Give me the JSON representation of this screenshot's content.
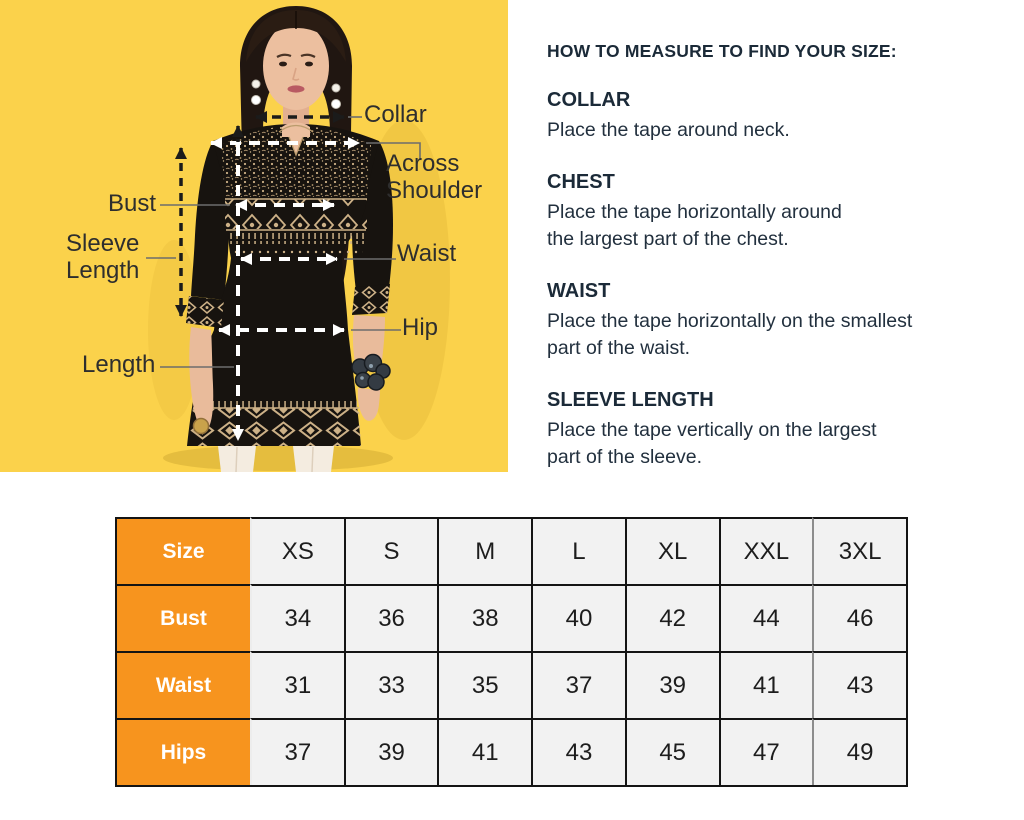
{
  "measure_diagram": {
    "background_color": "#FBD24B",
    "labels": {
      "collar": "Collar",
      "across_shoulder": "Across Shoulder",
      "bust": "Bust",
      "sleeve_length": "Sleeve Length",
      "waist": "Waist",
      "hip": "Hip",
      "length": "Length"
    }
  },
  "instructions": {
    "title": "HOW TO MEASURE TO FIND YOUR SIZE:",
    "sections": [
      {
        "heading": "COLLAR",
        "body": "Place the tape around neck."
      },
      {
        "heading": "CHEST",
        "body": "Place the tape horizontally around\nthe largest part of the chest."
      },
      {
        "heading": "WAIST",
        "body": "Place the tape horizontally on the smallest\npart of the waist."
      },
      {
        "heading": "SLEEVE LENGTH",
        "body": "Place the tape vertically on the largest\npart of the sleeve."
      }
    ]
  },
  "size_table": {
    "header_color": "#F7941E",
    "cell_color": "#F2F2F2",
    "columns": [
      "Size",
      "XS",
      "S",
      "M",
      "L",
      "XL",
      "XXL",
      "3XL"
    ],
    "rows": [
      {
        "label": "Bust",
        "values": [
          "34",
          "36",
          "38",
          "40",
          "42",
          "44",
          "46"
        ]
      },
      {
        "label": "Waist",
        "values": [
          "31",
          "33",
          "35",
          "37",
          "39",
          "41",
          "43"
        ]
      },
      {
        "label": "Hips",
        "values": [
          "37",
          "39",
          "41",
          "43",
          "45",
          "47",
          "49"
        ]
      }
    ]
  }
}
